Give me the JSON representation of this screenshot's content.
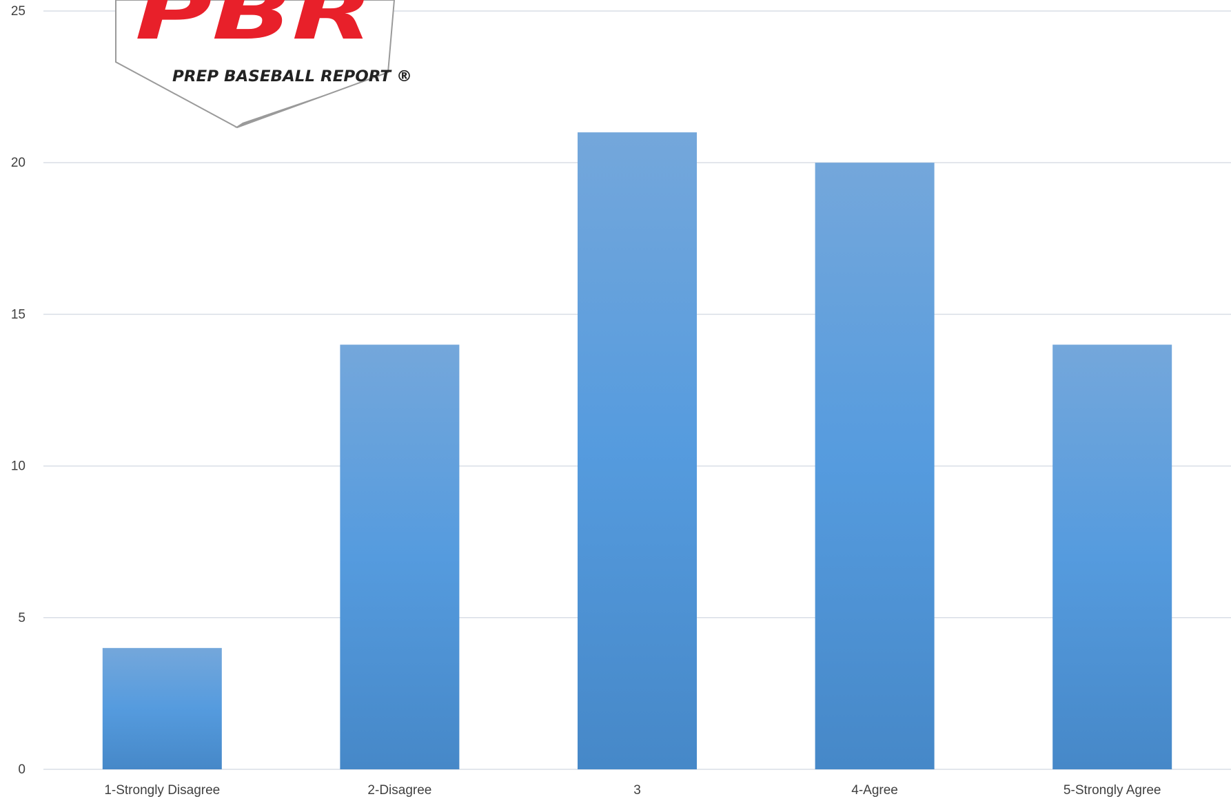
{
  "logo": {
    "mark": "PBR",
    "wordmark": "PREP BASEBALL REPORT ®",
    "mark_color": "#e8202a",
    "wordmark_color": "#222222"
  },
  "colors": {
    "bar_top": "#74a7db",
    "bar_mid": "#559bde",
    "bar_bottom": "#4688c8",
    "grid": "#d9dee6",
    "tick_text": "#404040"
  },
  "chart_data": {
    "type": "bar",
    "title": "",
    "xlabel": "",
    "ylabel": "",
    "categories": [
      "1-Strongly Disagree",
      "2-Disagree",
      "3",
      "4-Agree",
      "5-Strongly Agree"
    ],
    "values": [
      4,
      14,
      21,
      20,
      14
    ],
    "ylim": [
      0,
      25
    ],
    "yticks": [
      "0",
      "5",
      "10",
      "15",
      "20",
      "25"
    ],
    "grid": true,
    "legend": "none"
  }
}
